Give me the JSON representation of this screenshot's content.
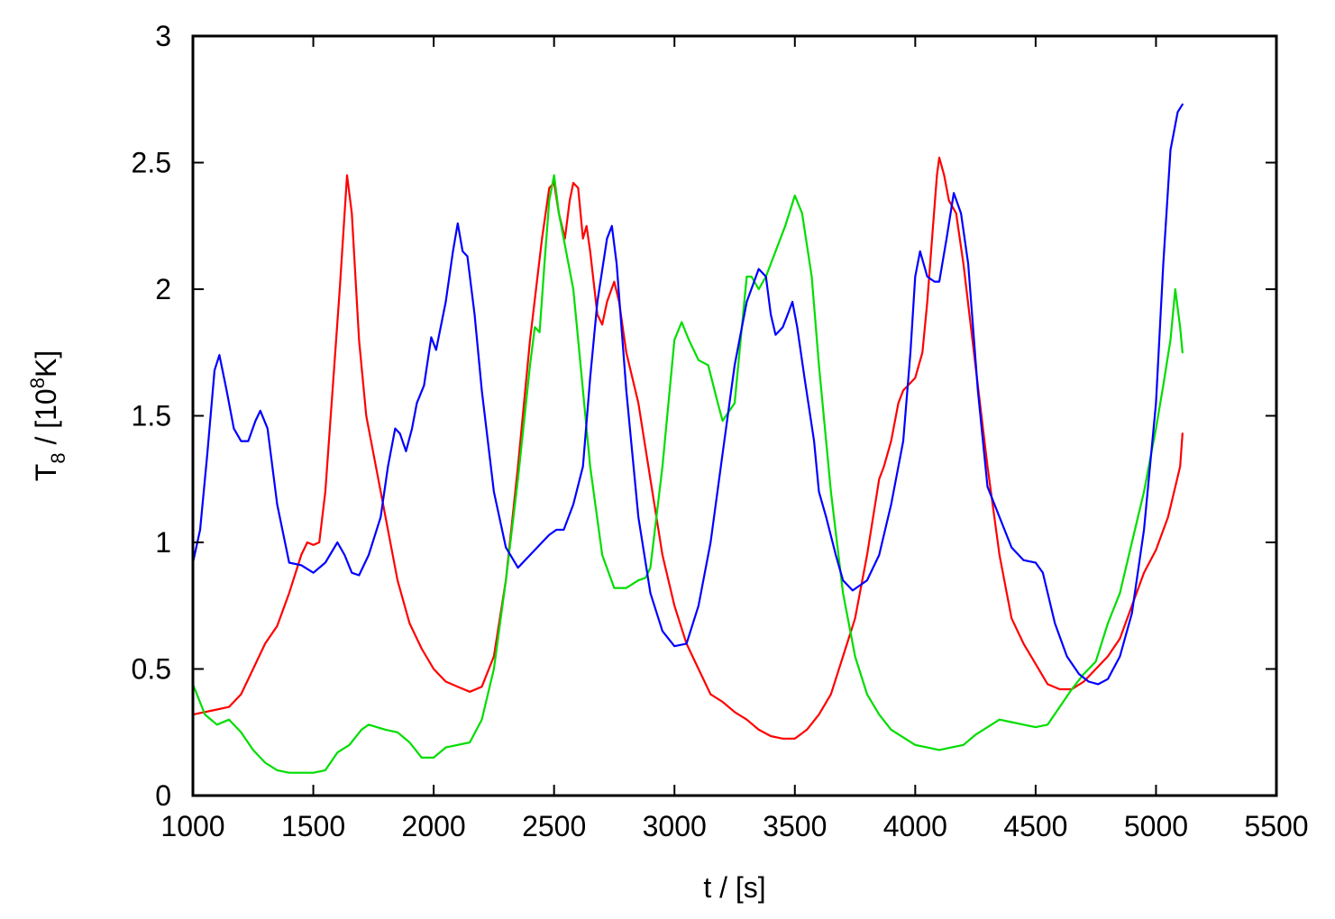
{
  "chart_data": {
    "type": "line",
    "xlabel": "t / [s]",
    "ylabel": {
      "base": "T",
      "sub": "8",
      "mid": " / [10",
      "sup": "8",
      "end": "K]"
    },
    "xlim": [
      1000,
      5500
    ],
    "ylim": [
      0,
      3
    ],
    "xticks": [
      1000,
      1500,
      2000,
      2500,
      3000,
      3500,
      4000,
      4500,
      5000,
      5500
    ],
    "yticks": [
      0,
      0.5,
      1,
      1.5,
      2,
      2.5,
      3
    ],
    "grid": false,
    "legend": "none",
    "series": [
      {
        "color": "#ff0000",
        "points": [
          [
            1000,
            0.32
          ],
          [
            1100,
            0.34
          ],
          [
            1150,
            0.35
          ],
          [
            1200,
            0.4
          ],
          [
            1250,
            0.5
          ],
          [
            1300,
            0.6
          ],
          [
            1350,
            0.67
          ],
          [
            1400,
            0.8
          ],
          [
            1450,
            0.95
          ],
          [
            1475,
            1.0
          ],
          [
            1500,
            0.99
          ],
          [
            1525,
            1.0
          ],
          [
            1550,
            1.2
          ],
          [
            1580,
            1.6
          ],
          [
            1610,
            2.0
          ],
          [
            1640,
            2.45
          ],
          [
            1660,
            2.3
          ],
          [
            1690,
            1.8
          ],
          [
            1720,
            1.5
          ],
          [
            1760,
            1.3
          ],
          [
            1800,
            1.1
          ],
          [
            1850,
            0.85
          ],
          [
            1900,
            0.68
          ],
          [
            1950,
            0.58
          ],
          [
            2000,
            0.5
          ],
          [
            2050,
            0.45
          ],
          [
            2100,
            0.43
          ],
          [
            2150,
            0.41
          ],
          [
            2200,
            0.43
          ],
          [
            2250,
            0.55
          ],
          [
            2300,
            0.85
          ],
          [
            2350,
            1.3
          ],
          [
            2400,
            1.8
          ],
          [
            2450,
            2.2
          ],
          [
            2480,
            2.4
          ],
          [
            2500,
            2.42
          ],
          [
            2520,
            2.3
          ],
          [
            2545,
            2.2
          ],
          [
            2565,
            2.35
          ],
          [
            2580,
            2.42
          ],
          [
            2600,
            2.4
          ],
          [
            2620,
            2.2
          ],
          [
            2635,
            2.25
          ],
          [
            2650,
            2.15
          ],
          [
            2680,
            1.9
          ],
          [
            2700,
            1.86
          ],
          [
            2720,
            1.95
          ],
          [
            2750,
            2.03
          ],
          [
            2770,
            1.95
          ],
          [
            2800,
            1.75
          ],
          [
            2850,
            1.55
          ],
          [
            2900,
            1.25
          ],
          [
            2950,
            0.95
          ],
          [
            3000,
            0.75
          ],
          [
            3050,
            0.6
          ],
          [
            3100,
            0.5
          ],
          [
            3150,
            0.4
          ],
          [
            3200,
            0.37
          ],
          [
            3250,
            0.33
          ],
          [
            3300,
            0.3
          ],
          [
            3350,
            0.26
          ],
          [
            3400,
            0.235
          ],
          [
            3450,
            0.225
          ],
          [
            3500,
            0.225
          ],
          [
            3550,
            0.26
          ],
          [
            3600,
            0.32
          ],
          [
            3650,
            0.4
          ],
          [
            3700,
            0.55
          ],
          [
            3750,
            0.7
          ],
          [
            3800,
            0.95
          ],
          [
            3850,
            1.25
          ],
          [
            3870,
            1.3
          ],
          [
            3900,
            1.4
          ],
          [
            3930,
            1.55
          ],
          [
            3950,
            1.6
          ],
          [
            4000,
            1.65
          ],
          [
            4030,
            1.75
          ],
          [
            4050,
            1.95
          ],
          [
            4070,
            2.2
          ],
          [
            4090,
            2.45
          ],
          [
            4100,
            2.52
          ],
          [
            4120,
            2.45
          ],
          [
            4140,
            2.35
          ],
          [
            4170,
            2.3
          ],
          [
            4200,
            2.1
          ],
          [
            4250,
            1.7
          ],
          [
            4300,
            1.3
          ],
          [
            4350,
            0.95
          ],
          [
            4400,
            0.7
          ],
          [
            4450,
            0.6
          ],
          [
            4500,
            0.52
          ],
          [
            4550,
            0.44
          ],
          [
            4600,
            0.42
          ],
          [
            4650,
            0.42
          ],
          [
            4700,
            0.45
          ],
          [
            4750,
            0.5
          ],
          [
            4800,
            0.55
          ],
          [
            4850,
            0.62
          ],
          [
            4900,
            0.75
          ],
          [
            4950,
            0.88
          ],
          [
            5000,
            0.97
          ],
          [
            5050,
            1.1
          ],
          [
            5100,
            1.3
          ],
          [
            5110,
            1.43
          ]
        ]
      },
      {
        "color": "#00dd00",
        "points": [
          [
            1000,
            0.44
          ],
          [
            1050,
            0.32
          ],
          [
            1100,
            0.28
          ],
          [
            1150,
            0.3
          ],
          [
            1200,
            0.25
          ],
          [
            1250,
            0.18
          ],
          [
            1300,
            0.13
          ],
          [
            1350,
            0.1
          ],
          [
            1400,
            0.09
          ],
          [
            1450,
            0.09
          ],
          [
            1500,
            0.09
          ],
          [
            1550,
            0.1
          ],
          [
            1600,
            0.17
          ],
          [
            1650,
            0.2
          ],
          [
            1700,
            0.26
          ],
          [
            1730,
            0.28
          ],
          [
            1800,
            0.26
          ],
          [
            1850,
            0.25
          ],
          [
            1900,
            0.21
          ],
          [
            1950,
            0.15
          ],
          [
            2000,
            0.15
          ],
          [
            2050,
            0.19
          ],
          [
            2100,
            0.2
          ],
          [
            2150,
            0.21
          ],
          [
            2200,
            0.3
          ],
          [
            2250,
            0.5
          ],
          [
            2300,
            0.85
          ],
          [
            2350,
            1.25
          ],
          [
            2400,
            1.7
          ],
          [
            2420,
            1.85
          ],
          [
            2440,
            1.83
          ],
          [
            2460,
            2.1
          ],
          [
            2480,
            2.35
          ],
          [
            2500,
            2.45
          ],
          [
            2520,
            2.3
          ],
          [
            2550,
            2.15
          ],
          [
            2580,
            2.0
          ],
          [
            2600,
            1.8
          ],
          [
            2650,
            1.3
          ],
          [
            2700,
            0.95
          ],
          [
            2750,
            0.82
          ],
          [
            2800,
            0.82
          ],
          [
            2850,
            0.85
          ],
          [
            2880,
            0.86
          ],
          [
            2900,
            0.9
          ],
          [
            2950,
            1.3
          ],
          [
            3000,
            1.8
          ],
          [
            3030,
            1.87
          ],
          [
            3060,
            1.8
          ],
          [
            3100,
            1.72
          ],
          [
            3140,
            1.7
          ],
          [
            3180,
            1.55
          ],
          [
            3200,
            1.48
          ],
          [
            3250,
            1.55
          ],
          [
            3280,
            1.85
          ],
          [
            3300,
            2.05
          ],
          [
            3320,
            2.05
          ],
          [
            3350,
            2.0
          ],
          [
            3380,
            2.05
          ],
          [
            3420,
            2.15
          ],
          [
            3460,
            2.25
          ],
          [
            3500,
            2.37
          ],
          [
            3530,
            2.3
          ],
          [
            3570,
            2.05
          ],
          [
            3600,
            1.7
          ],
          [
            3650,
            1.2
          ],
          [
            3700,
            0.8
          ],
          [
            3750,
            0.55
          ],
          [
            3800,
            0.4
          ],
          [
            3850,
            0.32
          ],
          [
            3900,
            0.26
          ],
          [
            3950,
            0.23
          ],
          [
            4000,
            0.2
          ],
          [
            4050,
            0.19
          ],
          [
            4100,
            0.18
          ],
          [
            4150,
            0.19
          ],
          [
            4200,
            0.2
          ],
          [
            4250,
            0.24
          ],
          [
            4300,
            0.27
          ],
          [
            4350,
            0.3
          ],
          [
            4400,
            0.29
          ],
          [
            4450,
            0.28
          ],
          [
            4500,
            0.27
          ],
          [
            4550,
            0.28
          ],
          [
            4600,
            0.35
          ],
          [
            4650,
            0.42
          ],
          [
            4700,
            0.48
          ],
          [
            4750,
            0.53
          ],
          [
            4800,
            0.68
          ],
          [
            4850,
            0.8
          ],
          [
            4900,
            1.0
          ],
          [
            4950,
            1.2
          ],
          [
            5000,
            1.45
          ],
          [
            5030,
            1.62
          ],
          [
            5060,
            1.8
          ],
          [
            5080,
            2.0
          ],
          [
            5100,
            1.85
          ],
          [
            5110,
            1.75
          ]
        ]
      },
      {
        "color": "#0000ff",
        "points": [
          [
            1000,
            0.92
          ],
          [
            1030,
            1.05
          ],
          [
            1060,
            1.35
          ],
          [
            1090,
            1.68
          ],
          [
            1110,
            1.74
          ],
          [
            1140,
            1.6
          ],
          [
            1170,
            1.45
          ],
          [
            1200,
            1.4
          ],
          [
            1230,
            1.4
          ],
          [
            1260,
            1.48
          ],
          [
            1280,
            1.52
          ],
          [
            1310,
            1.45
          ],
          [
            1350,
            1.15
          ],
          [
            1400,
            0.92
          ],
          [
            1450,
            0.91
          ],
          [
            1500,
            0.88
          ],
          [
            1550,
            0.92
          ],
          [
            1600,
            1.0
          ],
          [
            1630,
            0.95
          ],
          [
            1660,
            0.88
          ],
          [
            1690,
            0.87
          ],
          [
            1730,
            0.95
          ],
          [
            1780,
            1.1
          ],
          [
            1810,
            1.3
          ],
          [
            1840,
            1.45
          ],
          [
            1860,
            1.43
          ],
          [
            1885,
            1.36
          ],
          [
            1910,
            1.45
          ],
          [
            1930,
            1.55
          ],
          [
            1960,
            1.62
          ],
          [
            1990,
            1.81
          ],
          [
            2010,
            1.76
          ],
          [
            2050,
            1.95
          ],
          [
            2080,
            2.15
          ],
          [
            2100,
            2.26
          ],
          [
            2120,
            2.15
          ],
          [
            2140,
            2.13
          ],
          [
            2170,
            1.9
          ],
          [
            2200,
            1.6
          ],
          [
            2250,
            1.2
          ],
          [
            2300,
            0.98
          ],
          [
            2350,
            0.9
          ],
          [
            2400,
            0.95
          ],
          [
            2450,
            1.0
          ],
          [
            2480,
            1.03
          ],
          [
            2510,
            1.05
          ],
          [
            2540,
            1.05
          ],
          [
            2580,
            1.15
          ],
          [
            2620,
            1.3
          ],
          [
            2650,
            1.65
          ],
          [
            2680,
            1.95
          ],
          [
            2720,
            2.2
          ],
          [
            2740,
            2.25
          ],
          [
            2760,
            2.1
          ],
          [
            2800,
            1.6
          ],
          [
            2850,
            1.1
          ],
          [
            2900,
            0.8
          ],
          [
            2950,
            0.65
          ],
          [
            3000,
            0.59
          ],
          [
            3050,
            0.6
          ],
          [
            3100,
            0.75
          ],
          [
            3150,
            1.0
          ],
          [
            3200,
            1.35
          ],
          [
            3250,
            1.7
          ],
          [
            3300,
            1.95
          ],
          [
            3350,
            2.08
          ],
          [
            3380,
            2.05
          ],
          [
            3400,
            1.9
          ],
          [
            3420,
            1.82
          ],
          [
            3450,
            1.85
          ],
          [
            3470,
            1.9
          ],
          [
            3490,
            1.95
          ],
          [
            3510,
            1.85
          ],
          [
            3540,
            1.65
          ],
          [
            3580,
            1.4
          ],
          [
            3600,
            1.2
          ],
          [
            3630,
            1.1
          ],
          [
            3670,
            0.95
          ],
          [
            3700,
            0.85
          ],
          [
            3740,
            0.81
          ],
          [
            3800,
            0.85
          ],
          [
            3850,
            0.95
          ],
          [
            3900,
            1.15
          ],
          [
            3950,
            1.4
          ],
          [
            3980,
            1.75
          ],
          [
            4000,
            2.05
          ],
          [
            4020,
            2.15
          ],
          [
            4050,
            2.05
          ],
          [
            4080,
            2.03
          ],
          [
            4100,
            2.03
          ],
          [
            4130,
            2.2
          ],
          [
            4160,
            2.38
          ],
          [
            4190,
            2.3
          ],
          [
            4220,
            2.1
          ],
          [
            4260,
            1.6
          ],
          [
            4300,
            1.22
          ],
          [
            4350,
            1.1
          ],
          [
            4400,
            0.98
          ],
          [
            4450,
            0.93
          ],
          [
            4500,
            0.92
          ],
          [
            4530,
            0.88
          ],
          [
            4580,
            0.68
          ],
          [
            4630,
            0.55
          ],
          [
            4680,
            0.48
          ],
          [
            4720,
            0.45
          ],
          [
            4760,
            0.44
          ],
          [
            4800,
            0.46
          ],
          [
            4850,
            0.55
          ],
          [
            4900,
            0.72
          ],
          [
            4950,
            1.05
          ],
          [
            5000,
            1.55
          ],
          [
            5030,
            2.1
          ],
          [
            5060,
            2.55
          ],
          [
            5090,
            2.7
          ],
          [
            5110,
            2.73
          ]
        ]
      }
    ]
  }
}
